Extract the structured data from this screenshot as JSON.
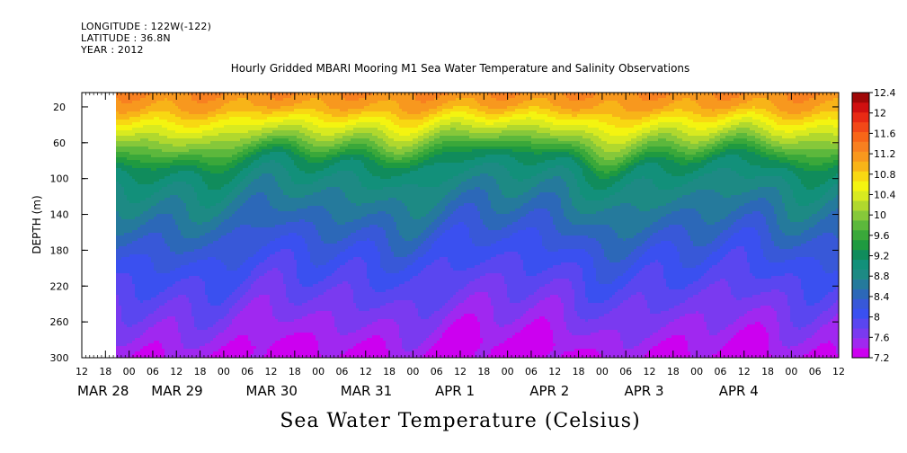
{
  "header": {
    "longitude": "LONGITUDE : 122W(-122)",
    "latitude": "LATITUDE : 36.8N",
    "year": "YEAR : 2012"
  },
  "chart_data": {
    "type": "heatmap",
    "title": "Hourly Gridded MBARI Mooring M1 Sea Water Temperature and Salinity Observations",
    "xlabel": "Sea Water Temperature (Celsius)",
    "ylabel": "DEPTH (m)",
    "ylim": [
      300,
      4
    ],
    "yticks": [
      20,
      60,
      100,
      140,
      180,
      220,
      260,
      300
    ],
    "xtick_hours": [
      "12",
      "18",
      "00",
      "06",
      "12",
      "18",
      "00",
      "06",
      "12",
      "18",
      "00",
      "06",
      "12",
      "18",
      "00",
      "06",
      "12",
      "18",
      "00",
      "06",
      "12",
      "18",
      "00",
      "06",
      "12",
      "18",
      "00",
      "06",
      "12",
      "18",
      "00",
      "06",
      "12"
    ],
    "xtick_dates": [
      "MAR 28",
      "MAR 29",
      "MAR 30",
      "MAR 31",
      "APR  1",
      "APR  2",
      "APR  3",
      "APR  4"
    ],
    "colorbar": {
      "levels": [
        7.2,
        7.4,
        7.6,
        7.8,
        8.0,
        8.2,
        8.4,
        8.6,
        8.8,
        9.0,
        9.2,
        9.4,
        9.6,
        9.8,
        10.0,
        10.2,
        10.4,
        10.6,
        10.8,
        11.0,
        11.2,
        11.4,
        11.6,
        11.8,
        12.0,
        12.2,
        12.4
      ],
      "labels": [
        "12.4",
        "12",
        "11.6",
        "11.2",
        "10.8",
        "10.4",
        "10",
        "9.6",
        "9.2",
        "8.8",
        "8.4",
        "8",
        "7.6",
        "7.2"
      ],
      "colors": [
        "#cc00f0",
        "#a028f0",
        "#7a3af0",
        "#5a46f0",
        "#3a50f0",
        "#3858d8",
        "#2c68b8",
        "#257a9c",
        "#1d8a84",
        "#12907a",
        "#108c5c",
        "#1f9a40",
        "#3aa83a",
        "#5cb83c",
        "#86c83a",
        "#b0d82e",
        "#d8ea20",
        "#f4f410",
        "#f8d812",
        "#f8b418",
        "#f8981e",
        "#f88020",
        "#f86618",
        "#f24818",
        "#e82a14",
        "#d01010",
        "#a00808"
      ]
    },
    "data_start": "MAR 28 18:00",
    "data_end": "APR 4 12:00",
    "depth_profiles_celsius": [
      {
        "depth": 4,
        "temp": 11.4
      },
      {
        "depth": 20,
        "temp": 11.2
      },
      {
        "depth": 40,
        "temp": 10.6
      },
      {
        "depth": 60,
        "temp": 10.0
      },
      {
        "depth": 80,
        "temp": 9.3
      },
      {
        "depth": 100,
        "temp": 9.0
      },
      {
        "depth": 140,
        "temp": 8.6
      },
      {
        "depth": 180,
        "temp": 8.2
      },
      {
        "depth": 220,
        "temp": 7.9
      },
      {
        "depth": 260,
        "temp": 7.6
      },
      {
        "depth": 300,
        "temp": 7.3
      }
    ]
  }
}
